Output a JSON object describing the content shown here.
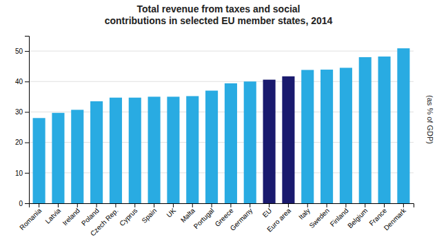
{
  "chart_data": {
    "type": "bar",
    "title": "Total revenue from taxes and social\ncontributions in selected EU member states, 2014",
    "ylabel": "(as % of GDP)",
    "categories": [
      "Romania",
      "Latvia",
      "Ireland",
      "Poland",
      "Czech Rep.",
      "Cyprus",
      "Spain",
      "UK",
      "Malta",
      "Portugal",
      "Greece",
      "Germany",
      "EU",
      "Euro area",
      "Italy",
      "Sweden",
      "Finland",
      "Belgium",
      "France",
      "Denmark"
    ],
    "values": [
      28.0,
      29.7,
      30.7,
      33.5,
      34.7,
      34.7,
      35.0,
      35.0,
      35.2,
      37.0,
      39.4,
      40.0,
      40.6,
      41.7,
      43.8,
      43.9,
      44.5,
      48.0,
      48.2,
      50.9
    ],
    "colors": [
      "#29ABE2",
      "#29ABE2",
      "#29ABE2",
      "#29ABE2",
      "#29ABE2",
      "#29ABE2",
      "#29ABE2",
      "#29ABE2",
      "#29ABE2",
      "#29ABE2",
      "#29ABE2",
      "#29ABE2",
      "#1A1A6E",
      "#1A1A6E",
      "#29ABE2",
      "#29ABE2",
      "#29ABE2",
      "#29ABE2",
      "#29ABE2",
      "#29ABE2"
    ],
    "ylim": [
      0,
      55
    ],
    "yticks": [
      0,
      10,
      20,
      30,
      40,
      50
    ],
    "grid": true
  }
}
